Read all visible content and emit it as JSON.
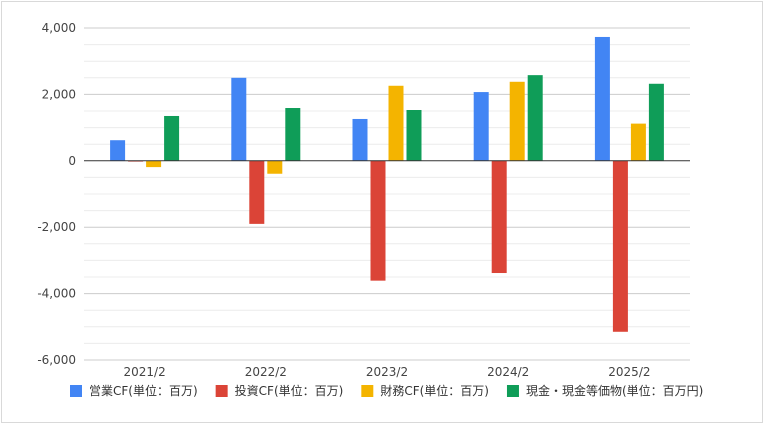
{
  "chart_data": {
    "type": "bar",
    "categories": [
      "2021/2",
      "2022/2",
      "2023/2",
      "2024/2",
      "2025/2"
    ],
    "series": [
      {
        "name": "営業CF(単位：百万)",
        "color": "#4285f4",
        "values": [
          620,
          2500,
          1260,
          2070,
          3730
        ]
      },
      {
        "name": "投資CF(単位：百万)",
        "color": "#db4437",
        "values": [
          -20,
          -1900,
          -3610,
          -3380,
          -5150
        ]
      },
      {
        "name": "財務CF(単位：百万)",
        "color": "#f4b400",
        "values": [
          -190,
          -390,
          2260,
          2380,
          1120
        ]
      },
      {
        "name": "現金・現金等価物(単位：百万円)",
        "color": "#0f9d58",
        "values": [
          1350,
          1590,
          1530,
          2580,
          2320
        ]
      }
    ],
    "y_ticks": [
      "4,000",
      "2,000",
      "0",
      "-2,000",
      "-4,000",
      "-6,000"
    ],
    "y_tick_values": [
      4000,
      2000,
      0,
      -2000,
      -4000,
      -6000
    ],
    "ylim": [
      -6000,
      4000
    ],
    "grid": true,
    "legend_position": "bottom",
    "title": "",
    "xlabel": "",
    "ylabel": ""
  }
}
